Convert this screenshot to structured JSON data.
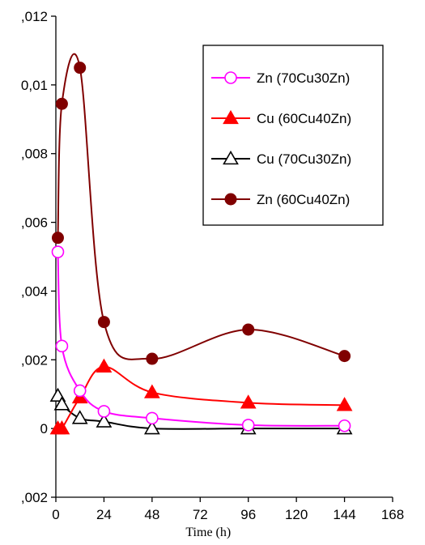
{
  "chart_data": {
    "type": "line",
    "title": "",
    "xlabel": "Time (h)",
    "ylabel": "",
    "xlim": [
      0,
      168
    ],
    "ylim": [
      -0.002,
      0.012
    ],
    "x_ticks": [
      0,
      24,
      48,
      72,
      96,
      120,
      144,
      168
    ],
    "x_tick_labels": [
      "0",
      "24",
      "48",
      "72",
      "96",
      "120",
      "144",
      "168"
    ],
    "y_ticks": [
      -0.002,
      0,
      0.002,
      0.004,
      0.006,
      0.008,
      0.01,
      0.012
    ],
    "y_tick_labels": [
      ",002",
      "0",
      ",002",
      ",004",
      ",006",
      ",008",
      "0,01",
      ",012"
    ],
    "grid": false,
    "legend_position": "top-right",
    "series": [
      {
        "name": "Zn (70Cu30Zn)",
        "color": "#ff00ff",
        "marker": "open-circle",
        "x": [
          1,
          3,
          12,
          24,
          48,
          96,
          144
        ],
        "y": [
          0.00514,
          0.0024,
          0.0011,
          0.0005,
          0.0003,
          0.0001,
          8e-05
        ]
      },
      {
        "name": "Cu (60Cu40Zn)",
        "color": "#ff0000",
        "marker": "filled-triangle",
        "x": [
          1,
          3,
          12,
          24,
          48,
          96,
          144
        ],
        "y": [
          0.0,
          0.0,
          0.0009,
          0.0018,
          0.00105,
          0.00075,
          0.00068
        ]
      },
      {
        "name": "Cu (70Cu30Zn)",
        "color": "#000000",
        "marker": "open-triangle",
        "x": [
          1,
          3,
          12,
          24,
          48,
          96,
          144
        ],
        "y": [
          0.00095,
          0.0007,
          0.0003,
          0.0002,
          0.0,
          0.0,
          0.0
        ]
      },
      {
        "name": "Zn (60Cu40Zn)",
        "color": "#800000",
        "marker": "filled-circle",
        "x": [
          1,
          3,
          12,
          24,
          48,
          96,
          144
        ],
        "y": [
          0.00555,
          0.00945,
          0.0105,
          0.0031,
          0.00203,
          0.00288,
          0.00211
        ]
      }
    ]
  }
}
